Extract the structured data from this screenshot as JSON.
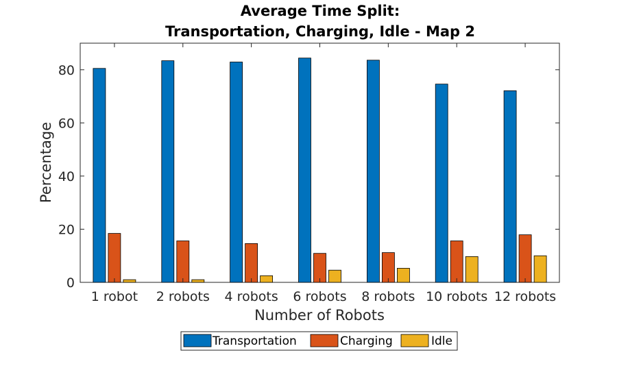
{
  "chart_data": {
    "type": "bar",
    "title": [
      "Average Time Split:",
      "Transportation, Charging, Idle - Map 2"
    ],
    "xlabel": "Number of Robots",
    "ylabel": "Percentage",
    "categories": [
      "1 robot",
      "2 robots",
      "4 robots",
      "6 robots",
      "8 robots",
      "10 robots",
      "12 robots"
    ],
    "series": [
      {
        "name": "Transportation",
        "color": "#0072BD",
        "values": [
          80.5,
          83.4,
          82.9,
          84.4,
          83.6,
          74.6,
          72.1
        ]
      },
      {
        "name": "Charging",
        "color": "#D95319",
        "values": [
          18.4,
          15.6,
          14.6,
          10.9,
          11.2,
          15.6,
          17.9
        ]
      },
      {
        "name": "Idle",
        "color": "#EDB120",
        "values": [
          1.0,
          1.0,
          2.5,
          4.6,
          5.3,
          9.7,
          10.0
        ]
      }
    ],
    "ylim": [
      0,
      90
    ],
    "yticks": [
      0,
      20,
      40,
      60,
      80
    ],
    "grid": false,
    "legend_position": "bottom"
  }
}
